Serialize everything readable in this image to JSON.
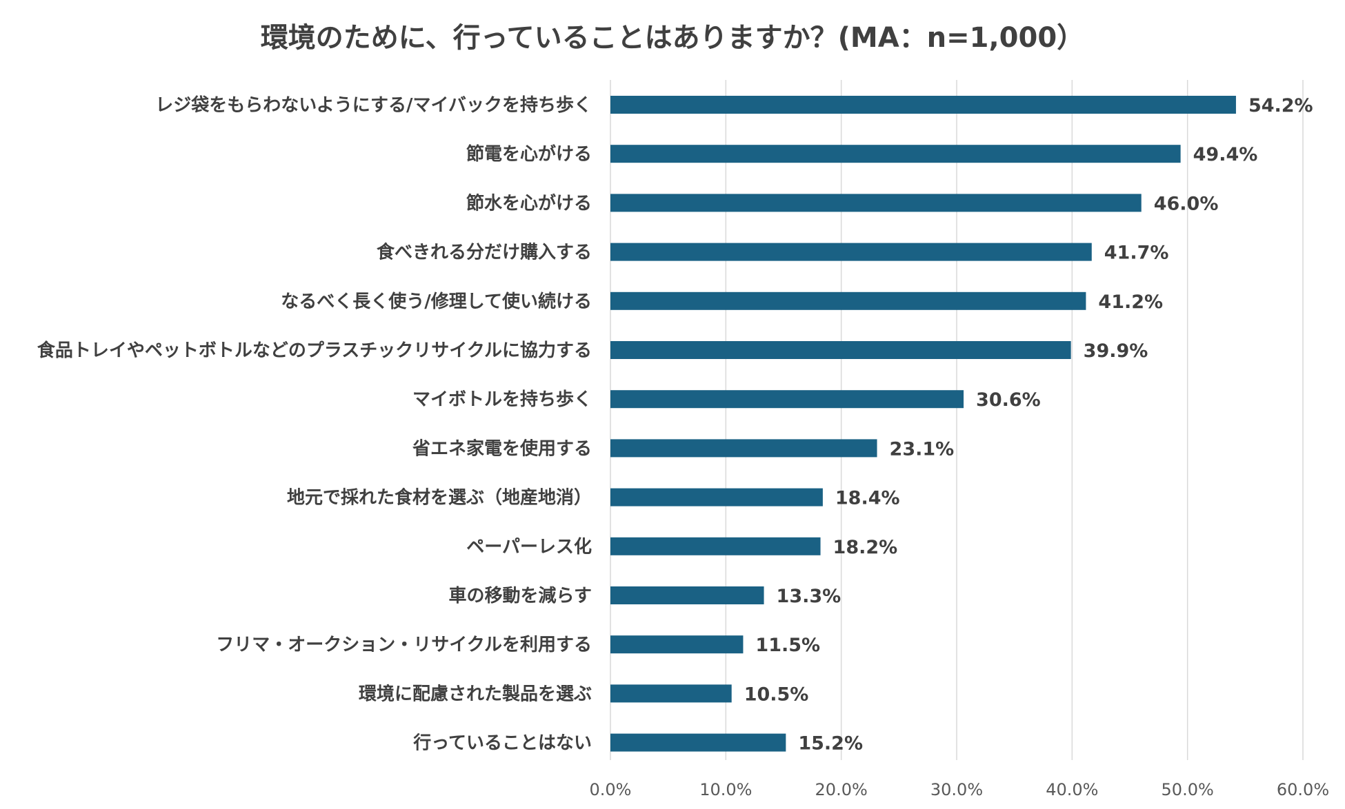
{
  "chart_data": {
    "type": "bar",
    "orientation": "horizontal",
    "title": "環境のために、行っていることはありますか？(MA：n=1,000）",
    "categories": [
      "レジ袋をもらわないようにする/マイバックを持ち歩く",
      "節電を心がける",
      "節水を心がける",
      "食べきれる分だけ購入する",
      "なるべく長く使う/修理して使い続ける",
      "食品トレイやペットボトルなどのプラスチックリサイクルに協力する",
      "マイボトルを持ち歩く",
      "省エネ家電を使用する",
      "地元で採れた食材を選ぶ（地産地消）",
      "ペーパーレス化",
      "車の移動を減らす",
      "フリマ・オークション・リサイクルを利用する",
      "環境に配慮された製品を選ぶ",
      "行っていることはない"
    ],
    "values": [
      54.2,
      49.4,
      46.0,
      41.7,
      41.2,
      39.9,
      30.6,
      23.1,
      18.4,
      18.2,
      13.3,
      11.5,
      10.5,
      15.2
    ],
    "value_labels": [
      "54.2%",
      "49.4%",
      "46.0%",
      "41.7%",
      "41.2%",
      "39.9%",
      "30.6%",
      "23.1%",
      "18.4%",
      "18.2%",
      "13.3%",
      "11.5%",
      "10.5%",
      "15.2%"
    ],
    "xlim": [
      0,
      60
    ],
    "ticks": [
      0,
      10,
      20,
      30,
      40,
      50,
      60
    ],
    "tick_labels": [
      "0.0%",
      "10.0%",
      "20.0%",
      "30.0%",
      "40.0%",
      "50.0%",
      "60.0%"
    ],
    "grid": "vertical",
    "legend": "none",
    "bar_color": "#1a6184",
    "grid_color": "#d9d9d9"
  }
}
